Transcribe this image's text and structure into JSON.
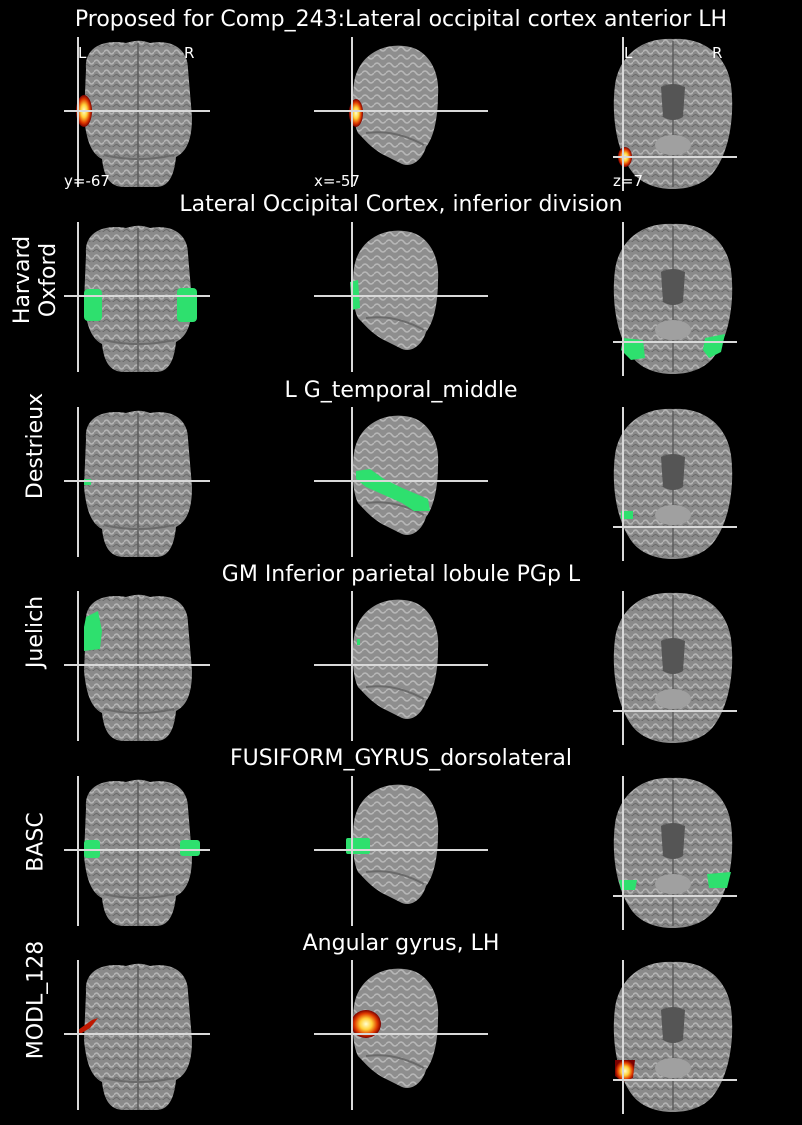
{
  "title": "Proposed for Comp_243:Lateral occipital cortex anterior LH",
  "orientation": {
    "left": "L",
    "right": "R"
  },
  "coords": {
    "coronal": "y=-67",
    "sagittal": "x=-57",
    "axial": "z=7"
  },
  "colors": {
    "background": "#000000",
    "atlas_overlay": "#2ee06e",
    "crosshair": "#d9d9d9"
  },
  "rows": [
    {
      "atlas": "",
      "region": "",
      "overlay": "hot"
    },
    {
      "atlas": "Harvard\nOxford",
      "region": "Lateral Occipital Cortex, inferior division",
      "overlay": "green"
    },
    {
      "atlas": "Destrieux",
      "region": "L G_temporal_middle",
      "overlay": "green"
    },
    {
      "atlas": "Juelich",
      "region": "GM Inferior parietal lobule PGp L",
      "overlay": "green"
    },
    {
      "atlas": "BASC",
      "region": "FUSIFORM_GYRUS_dorsolateral",
      "overlay": "green"
    },
    {
      "atlas": "MODL_128",
      "region": "Angular gyrus, LH",
      "overlay": "hot"
    }
  ]
}
